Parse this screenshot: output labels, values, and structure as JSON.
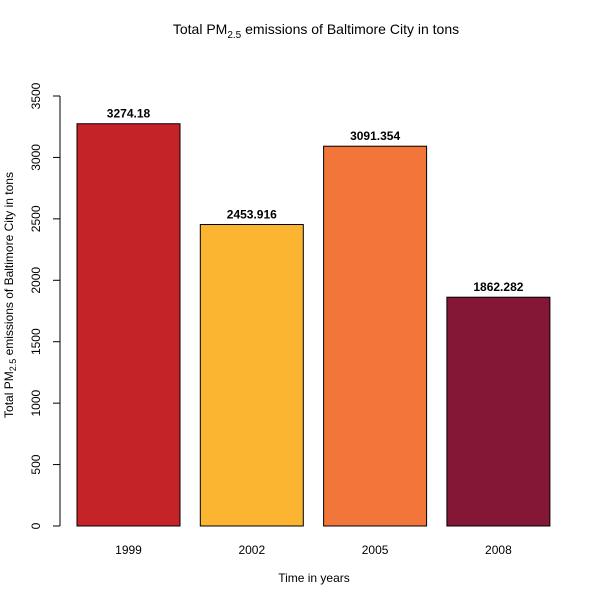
{
  "chart_data": {
    "type": "bar",
    "title": {
      "before": "Total PM",
      "sub": "2.5",
      "after": " emissions of Baltimore City in tons"
    },
    "xlabel": "Time in years",
    "ylabel": {
      "before": "Total PM",
      "sub": "2.5",
      "after": " emissions of Baltimore City in tons"
    },
    "categories": [
      "1999",
      "2002",
      "2005",
      "2008"
    ],
    "values": [
      3274.18,
      2453.916,
      3091.354,
      1862.282
    ],
    "value_labels": [
      "3274.18",
      "2453.916",
      "3091.354",
      "1862.282"
    ],
    "colors": [
      "#C42328",
      "#FCB531",
      "#F2763A",
      "#841636"
    ],
    "ylim": [
      0,
      3500
    ],
    "yticks": [
      0,
      500,
      1000,
      1500,
      2000,
      2500,
      3000,
      3500
    ],
    "grid": false,
    "legend": "none"
  }
}
